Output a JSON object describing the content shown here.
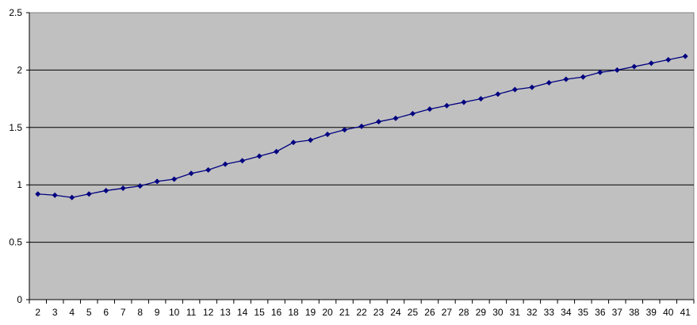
{
  "chart_data": {
    "type": "line",
    "title": "",
    "xlabel": "",
    "ylabel": "",
    "ylim": [
      0,
      2.5
    ],
    "yticks": [
      "0",
      "0.5",
      "1",
      "1.5",
      "2",
      "2.5"
    ],
    "grid": true,
    "legend": "none",
    "colors": {
      "plot_background": "#c0c0c0",
      "series": "#000080",
      "grid": "#000000"
    },
    "categories": [
      "2",
      "3",
      "4",
      "5",
      "6",
      "7",
      "8",
      "9",
      "10",
      "11",
      "12",
      "13",
      "14",
      "15",
      "16",
      "18",
      "19",
      "20",
      "21",
      "22",
      "23",
      "24",
      "25",
      "26",
      "27",
      "28",
      "29",
      "30",
      "31",
      "32",
      "33",
      "34",
      "35",
      "36",
      "37",
      "38",
      "39",
      "40",
      "41"
    ],
    "series": [
      {
        "values": [
          0.92,
          0.91,
          0.89,
          0.92,
          0.95,
          0.97,
          0.99,
          1.03,
          1.05,
          1.1,
          1.13,
          1.18,
          1.21,
          1.25,
          1.29,
          1.37,
          1.39,
          1.44,
          1.48,
          1.51,
          1.55,
          1.58,
          1.62,
          1.66,
          1.69,
          1.72,
          1.75,
          1.79,
          1.83,
          1.85,
          1.89,
          1.92,
          1.94,
          1.98,
          2.0,
          2.03,
          2.06,
          2.09,
          2.12
        ]
      }
    ]
  }
}
